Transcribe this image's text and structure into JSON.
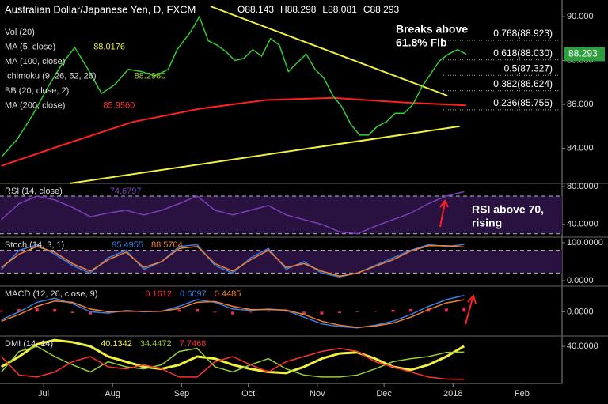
{
  "chart_data": [
    {
      "type": "line",
      "title": "Australian Dollar/Japanese Yen, D, FXCM",
      "ohlc": [
        "O88.143",
        "H88.298",
        "L88.081",
        "C88.293"
      ],
      "indicators": [
        {
          "name": "Vol (20)"
        },
        {
          "name": "MA (5, close)",
          "value": "88.0176",
          "color": "#e8e84a"
        },
        {
          "name": "MA (100, close)"
        },
        {
          "name": "Ichimoku (9, 26, 52, 26)",
          "value": "88.2980",
          "color": "#9acd32"
        },
        {
          "name": "BB (20, close, 2)"
        },
        {
          "name": "MA (200, close)",
          "value": "85.9560",
          "color": "#ff3030"
        }
      ],
      "annotations": [
        "Breaks above",
        "61.8% Fib"
      ],
      "fib": [
        {
          "value": 88.923,
          "label": "0.768(88.923)"
        },
        {
          "value": 88.03,
          "label": "0.618(88.030)"
        },
        {
          "value": 87.327,
          "label": "0.5(87.327)"
        },
        {
          "value": 86.624,
          "label": "0.382(86.624)"
        },
        {
          "value": 85.755,
          "label": "0.236(85.755)"
        }
      ],
      "current": {
        "value": 88.293,
        "label": "88.293"
      },
      "x": [
        -19,
        -12,
        -5,
        2,
        8,
        14,
        20,
        26,
        32,
        38,
        44,
        50,
        56,
        60,
        66,
        70,
        74,
        78,
        82,
        86,
        90,
        94,
        98,
        102,
        106,
        110,
        114,
        118,
        122,
        126,
        130,
        134,
        138,
        142,
        146,
        150,
        154,
        158,
        162,
        166,
        170,
        174,
        178,
        182,
        186,
        190
      ],
      "series": [
        {
          "color": "#33cc33",
          "values": [
            83.6,
            84.4,
            85.5,
            86.8,
            87.8,
            88.6,
            87.6,
            86.5,
            86.9,
            87.6,
            87.5,
            87.3,
            87.6,
            88.5,
            89.3,
            90.0,
            88.9,
            88.7,
            88.4,
            88.0,
            88.1,
            88.5,
            88.2,
            89.0,
            88.7,
            87.5,
            87.9,
            88.3,
            87.6,
            87.2,
            86.4,
            85.9,
            85.1,
            84.6,
            84.6,
            85.0,
            85.2,
            85.6,
            85.6,
            86.0,
            86.8,
            87.4,
            88.0,
            88.3,
            88.5,
            88.293
          ]
        }
      ],
      "lines": [
        {
          "color": "#ff2020",
          "x": [
            -19,
            10,
            40,
            70,
            100,
            130,
            160,
            190
          ],
          "values": [
            83.2,
            84.2,
            85.2,
            85.8,
            86.2,
            86.3,
            86.1,
            85.956
          ]
        },
        {
          "color": "#f0f040",
          "x": [
            75,
            181.5
          ],
          "values": [
            90.47,
            86.4
          ]
        },
        {
          "color": "#f0f040",
          "x": [
            11.7,
            187
          ],
          "values": [
            82.4,
            85.0
          ]
        }
      ],
      "xlim": [
        -19.6,
        233
      ],
      "xticks": [
        {
          "value": 0,
          "label": "Jul"
        },
        {
          "value": 31,
          "label": "Aug"
        },
        {
          "value": 62,
          "label": "Sep"
        },
        {
          "value": 92,
          "label": "Oct"
        },
        {
          "value": 123,
          "label": "Nov"
        },
        {
          "value": 153,
          "label": "Dec"
        },
        {
          "value": 184,
          "label": "2018"
        },
        {
          "value": 215,
          "label": "Feb"
        }
      ],
      "ylim": [
        82.4,
        90.76
      ],
      "yticks": [
        {
          "value": 90,
          "label": "90.000"
        },
        {
          "value": 88,
          "label": "88.000"
        },
        {
          "value": 86,
          "label": "86.000"
        },
        {
          "value": 84,
          "label": "84.000"
        }
      ]
    },
    {
      "type": "line",
      "title": "RSI (14, close)",
      "readout": [
        {
          "value": "74.6797",
          "color": "#8040c0"
        }
      ],
      "annotations": [
        "RSI above 70,",
        "rising"
      ],
      "band": [
        30,
        70
      ],
      "x": [
        -19,
        -11,
        -3,
        5,
        13,
        21,
        29,
        37,
        45,
        53,
        61,
        69,
        77,
        85,
        93,
        101,
        109,
        117,
        125,
        133,
        141,
        149,
        157,
        165,
        173,
        181,
        189
      ],
      "series": [
        {
          "color": "#7a3fb8",
          "values": [
            45,
            62,
            70,
            66,
            58,
            48,
            52,
            55,
            50,
            55,
            62,
            70,
            55,
            50,
            55,
            60,
            50,
            45,
            40,
            32,
            30,
            38,
            45,
            52,
            62,
            70,
            74.68
          ]
        }
      ],
      "ylim": [
        26.4,
        83.4
      ],
      "yticks": [
        {
          "value": 80,
          "label": "80.0000"
        },
        {
          "value": 40,
          "label": "40.0000"
        }
      ]
    },
    {
      "type": "line",
      "title": "Stoch (14, 3, 1)",
      "readout": [
        {
          "value": "95.4955",
          "color": "#3a7fe0"
        },
        {
          "value": "88.5704",
          "color": "#f08030"
        }
      ],
      "band": [
        20,
        80
      ],
      "x": [
        -19,
        -11,
        -3,
        5,
        13,
        21,
        29,
        37,
        45,
        53,
        61,
        69,
        77,
        85,
        93,
        101,
        109,
        117,
        125,
        133,
        141,
        149,
        157,
        165,
        173,
        181,
        189
      ],
      "series": [
        {
          "color": "#3a7fe0",
          "values": [
            30,
            80,
            95,
            70,
            40,
            20,
            60,
            80,
            30,
            50,
            90,
            95,
            40,
            20,
            60,
            85,
            30,
            50,
            20,
            10,
            20,
            40,
            60,
            80,
            95,
            90,
            95.5
          ]
        },
        {
          "color": "#f08030",
          "values": [
            35,
            70,
            90,
            75,
            45,
            25,
            55,
            75,
            35,
            50,
            85,
            90,
            45,
            25,
            55,
            80,
            35,
            45,
            25,
            12,
            20,
            38,
            55,
            78,
            92,
            92,
            88.57
          ]
        }
      ],
      "ylim": [
        -14.6,
        114.6
      ],
      "yticks": [
        {
          "value": 100,
          "label": "100.0000"
        },
        {
          "value": 0,
          "label": "0.0000"
        }
      ]
    },
    {
      "type": "line",
      "title": "MACD (12, 26, close, 9)",
      "readout": [
        {
          "value": "0.1612",
          "color": "#ff3030"
        },
        {
          "value": "0.6097",
          "color": "#3a7fe0"
        },
        {
          "value": "0.4485",
          "color": "#f08030"
        }
      ],
      "x": [
        -19,
        -11,
        -3,
        5,
        13,
        21,
        29,
        37,
        45,
        53,
        61,
        69,
        77,
        85,
        93,
        101,
        109,
        117,
        125,
        133,
        141,
        149,
        157,
        165,
        173,
        181,
        189
      ],
      "series": [
        {
          "color": "#e03050",
          "style": "bar",
          "values": [
            0.05,
            0.1,
            0.15,
            0.1,
            -0.05,
            -0.1,
            -0.05,
            0.03,
            -0.02,
            0,
            0.08,
            0.1,
            -0.03,
            -0.1,
            -0.03,
            0.02,
            -0.01,
            -0.1,
            -0.1,
            -0.05,
            -0.02,
            0.03,
            0.07,
            0.1,
            0.12,
            0.12,
            0.1612
          ]
        },
        {
          "color": "#3a7fe0",
          "values": [
            -0.3,
            0,
            0.35,
            0.5,
            0.3,
            0,
            -0.05,
            0.05,
            0,
            0.02,
            0.2,
            0.45,
            0.35,
            0.1,
            0.05,
            0.1,
            0.05,
            -0.2,
            -0.45,
            -0.55,
            -0.6,
            -0.5,
            -0.35,
            -0.1,
            0.2,
            0.45,
            0.6097
          ]
        },
        {
          "color": "#f08030",
          "values": [
            -0.35,
            -0.1,
            0.2,
            0.4,
            0.35,
            0.1,
            0,
            0.02,
            0.02,
            0.02,
            0.12,
            0.35,
            0.38,
            0.2,
            0.08,
            0.08,
            0.06,
            -0.1,
            -0.35,
            -0.5,
            -0.58,
            -0.53,
            -0.42,
            -0.2,
            0.08,
            0.33,
            0.4485
          ]
        }
      ],
      "ylim": [
        -0.9,
        0.95
      ],
      "yticks": [
        {
          "value": 0,
          "label": "0.0000"
        }
      ]
    },
    {
      "type": "line",
      "title": "DMI (14, 14)",
      "readout": [
        {
          "value": "40.1342",
          "color": "#f0f040"
        },
        {
          "value": "34.4472",
          "color": "#9acd32"
        },
        {
          "value": "7.7468",
          "color": "#ff3030"
        }
      ],
      "x": [
        -19,
        -11,
        -3,
        5,
        13,
        21,
        29,
        37,
        45,
        53,
        61,
        69,
        77,
        85,
        93,
        101,
        109,
        117,
        125,
        133,
        141,
        149,
        157,
        165,
        173,
        181,
        189
      ],
      "series": [
        {
          "color": "#f0f040",
          "width": 3,
          "values": [
            20,
            30,
            42,
            46,
            44,
            40,
            30,
            25,
            20,
            18,
            22,
            30,
            28,
            22,
            18,
            15,
            14,
            20,
            28,
            33,
            34,
            28,
            20,
            17,
            22,
            30,
            40.1342
          ]
        },
        {
          "color": "#9acd32",
          "values": [
            15,
            35,
            40,
            30,
            22,
            15,
            25,
            20,
            18,
            22,
            35,
            38,
            20,
            15,
            22,
            28,
            18,
            12,
            10,
            10,
            12,
            18,
            25,
            28,
            30,
            34,
            34.4472
          ]
        },
        {
          "color": "#ff3030",
          "values": [
            30,
            12,
            10,
            15,
            25,
            30,
            20,
            18,
            22,
            18,
            10,
            10,
            25,
            30,
            22,
            15,
            25,
            30,
            35,
            38,
            35,
            25,
            20,
            15,
            10,
            8,
            7.7468
          ]
        }
      ],
      "ylim": [
        3.8,
        50
      ],
      "yticks": [
        {
          "value": 40,
          "label": "40.0000"
        }
      ]
    }
  ]
}
